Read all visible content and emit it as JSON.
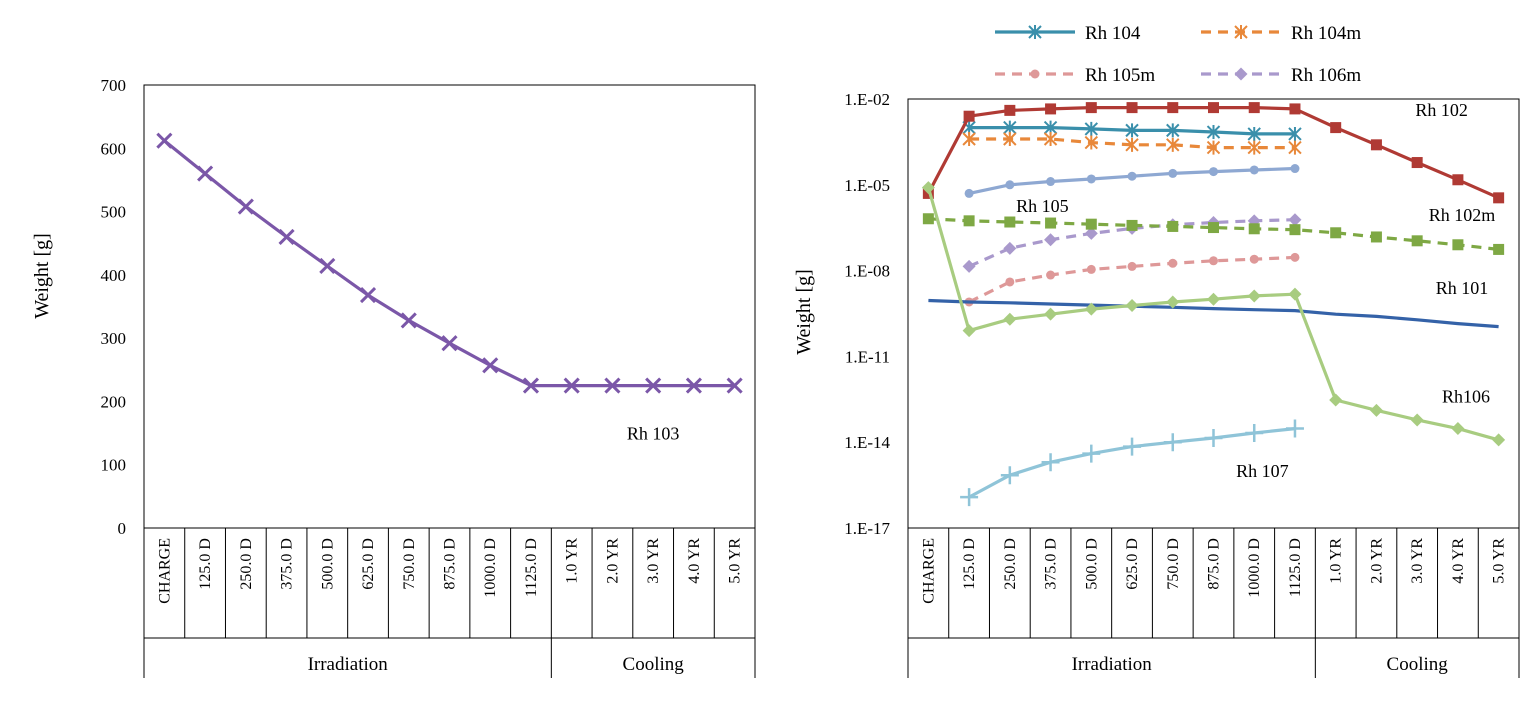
{
  "chart_data": [
    {
      "type": "line",
      "title": "",
      "ylabel": "Weight [g]",
      "xlabel": "",
      "yscale": "linear",
      "ylim": [
        0,
        700
      ],
      "yticks": [
        "0",
        "100",
        "200",
        "300",
        "400",
        "500",
        "600",
        "700"
      ],
      "categories": [
        "CHARGE",
        "125.0 D",
        "250.0 D",
        "375.0 D",
        "500.0 D",
        "625.0 D",
        "750.0 D",
        "875.0 D",
        "1000.0 D",
        "1125.0 D",
        "1.0 YR",
        "2.0 YR",
        "3.0 YR",
        "4.0 YR",
        "5.0 YR"
      ],
      "groups": [
        {
          "label": "Irradiation",
          "span": 10
        },
        {
          "label": "Cooling",
          "span": 5
        }
      ],
      "series": [
        {
          "name": "Rh 103",
          "color": "#7b57a8",
          "marker": "x",
          "dashed": false,
          "values": [
            612,
            560,
            508,
            460,
            414,
            368,
            328,
            292,
            257,
            225,
            225,
            225,
            225,
            225,
            225
          ]
        }
      ],
      "annotations": [
        {
          "text": "Rh 103",
          "series": "Rh 103",
          "at": 12,
          "value": 225,
          "place": "below"
        }
      ]
    },
    {
      "type": "line",
      "title": "",
      "ylabel": "Weight [g]",
      "xlabel": "",
      "yscale": "log",
      "ylim": [
        1e-17,
        0.01
      ],
      "yticks": [
        "1.E-17",
        "1.E-14",
        "1.E-11",
        "1.E-08",
        "1.E-05",
        "1.E-02"
      ],
      "categories": [
        "CHARGE",
        "125.0 D",
        "250.0 D",
        "375.0 D",
        "500.0 D",
        "625.0 D",
        "750.0 D",
        "875.0 D",
        "1000.0 D",
        "1125.0 D",
        "1.0 YR",
        "2.0 YR",
        "3.0 YR",
        "4.0 YR",
        "5.0 YR"
      ],
      "groups": [
        {
          "label": "Irradiation",
          "span": 10
        },
        {
          "label": "Cooling",
          "span": 5
        }
      ],
      "legend": [
        "Rh 104",
        "Rh 104m",
        "Rh 105m",
        "Rh 106m"
      ],
      "series": [
        {
          "name": "Rh 104",
          "color": "#3a8fab",
          "marker": "asterisk",
          "dashed": false,
          "in_legend": true,
          "values": [
            null,
            0.001,
            0.001,
            0.001,
            0.0009,
            0.0008,
            0.0008,
            0.0007,
            0.0006,
            0.0006,
            null,
            null,
            null,
            null,
            null
          ]
        },
        {
          "name": "Rh 104m",
          "color": "#e8883a",
          "marker": "asterisk",
          "dashed": true,
          "in_legend": true,
          "values": [
            null,
            0.0004,
            0.0004,
            0.0004,
            0.0003,
            0.00025,
            0.00025,
            0.0002,
            0.0002,
            0.0002,
            null,
            null,
            null,
            null,
            null
          ]
        },
        {
          "name": "Rh 105m",
          "color": "#de9898",
          "marker": "circle",
          "dashed": true,
          "in_legend": true,
          "values": [
            null,
            8e-10,
            4e-09,
            7e-09,
            1.1e-08,
            1.4e-08,
            1.8e-08,
            2.2e-08,
            2.5e-08,
            2.9e-08,
            null,
            null,
            null,
            null,
            null
          ]
        },
        {
          "name": "Rh 106m",
          "color": "#a999cc",
          "marker": "diamond",
          "dashed": true,
          "in_legend": true,
          "values": [
            null,
            1.4e-08,
            6e-08,
            1.2e-07,
            2e-07,
            3e-07,
            4e-07,
            4.8e-07,
            5.5e-07,
            6e-07,
            null,
            null,
            null,
            null,
            null
          ]
        },
        {
          "name": "Rh 102",
          "color": "#b03a34",
          "marker": "square",
          "dashed": false,
          "in_legend": false,
          "values": [
            5e-06,
            0.0025,
            0.004,
            0.0045,
            0.005,
            0.005,
            0.005,
            0.005,
            0.005,
            0.0045,
            0.001,
            0.00025,
            6e-05,
            1.5e-05,
            3.5e-06
          ]
        },
        {
          "name": "Rh 105",
          "color": "#8ea8d2",
          "marker": "circle",
          "dashed": false,
          "in_legend": false,
          "values": [
            null,
            5e-06,
            1e-05,
            1.3e-05,
            1.6e-05,
            2e-05,
            2.5e-05,
            2.9e-05,
            3.3e-05,
            3.7e-05,
            null,
            null,
            null,
            null,
            null
          ]
        },
        {
          "name": "Rh 102m",
          "color": "#7ea844",
          "marker": "square",
          "dashed": true,
          "in_legend": false,
          "values": [
            6.5e-07,
            5.5e-07,
            5e-07,
            4.6e-07,
            4.2e-07,
            3.8e-07,
            3.5e-07,
            3.2e-07,
            2.9e-07,
            2.7e-07,
            2.1e-07,
            1.5e-07,
            1.1e-07,
            8e-08,
            5.5e-08
          ]
        },
        {
          "name": "Rh 101",
          "color": "#3462a8",
          "marker": "none",
          "dashed": false,
          "in_legend": false,
          "values": [
            9e-10,
            8e-10,
            7.5e-10,
            6.8e-10,
            6.2e-10,
            5.7e-10,
            5.2e-10,
            4.7e-10,
            4.3e-10,
            4e-10,
            3e-10,
            2.5e-10,
            1.9e-10,
            1.4e-10,
            1.1e-10
          ]
        },
        {
          "name": "Rh106",
          "color": "#a8cc80",
          "marker": "diamond",
          "dashed": false,
          "in_legend": false,
          "values": [
            8e-06,
            8e-11,
            2e-10,
            3e-10,
            4.5e-10,
            6e-10,
            8e-10,
            1e-09,
            1.3e-09,
            1.5e-09,
            3e-13,
            1.3e-13,
            6e-14,
            3e-14,
            1.2e-14
          ]
        },
        {
          "name": "Rh 107",
          "color": "#8fc4d8",
          "marker": "plus",
          "dashed": false,
          "in_legend": false,
          "values": [
            null,
            1.2e-16,
            7e-16,
            2e-15,
            4e-15,
            7e-15,
            1e-14,
            1.4e-14,
            2.1e-14,
            3e-14,
            null,
            null,
            null,
            null,
            null
          ]
        }
      ],
      "annotations": [
        {
          "text": "Rh 102",
          "series": "Rh 102",
          "at": 12.6,
          "value": 0.0025
        },
        {
          "text": "Rh 105",
          "series": "Rh 105",
          "at": 2.8,
          "value": 1.1e-06
        },
        {
          "text": "Rh 102m",
          "series": "Rh 102m",
          "at": 13.1,
          "value": 5.5e-07
        },
        {
          "text": "Rh 101",
          "series": "Rh 101",
          "at": 13.1,
          "value": 1.5e-09
        },
        {
          "text": "Rh106",
          "series": "Rh106",
          "at": 13.2,
          "value": 2.4e-13
        },
        {
          "text": "Rh 107",
          "series": "Rh 107",
          "at": 8.2,
          "value": 6e-16
        }
      ]
    }
  ]
}
